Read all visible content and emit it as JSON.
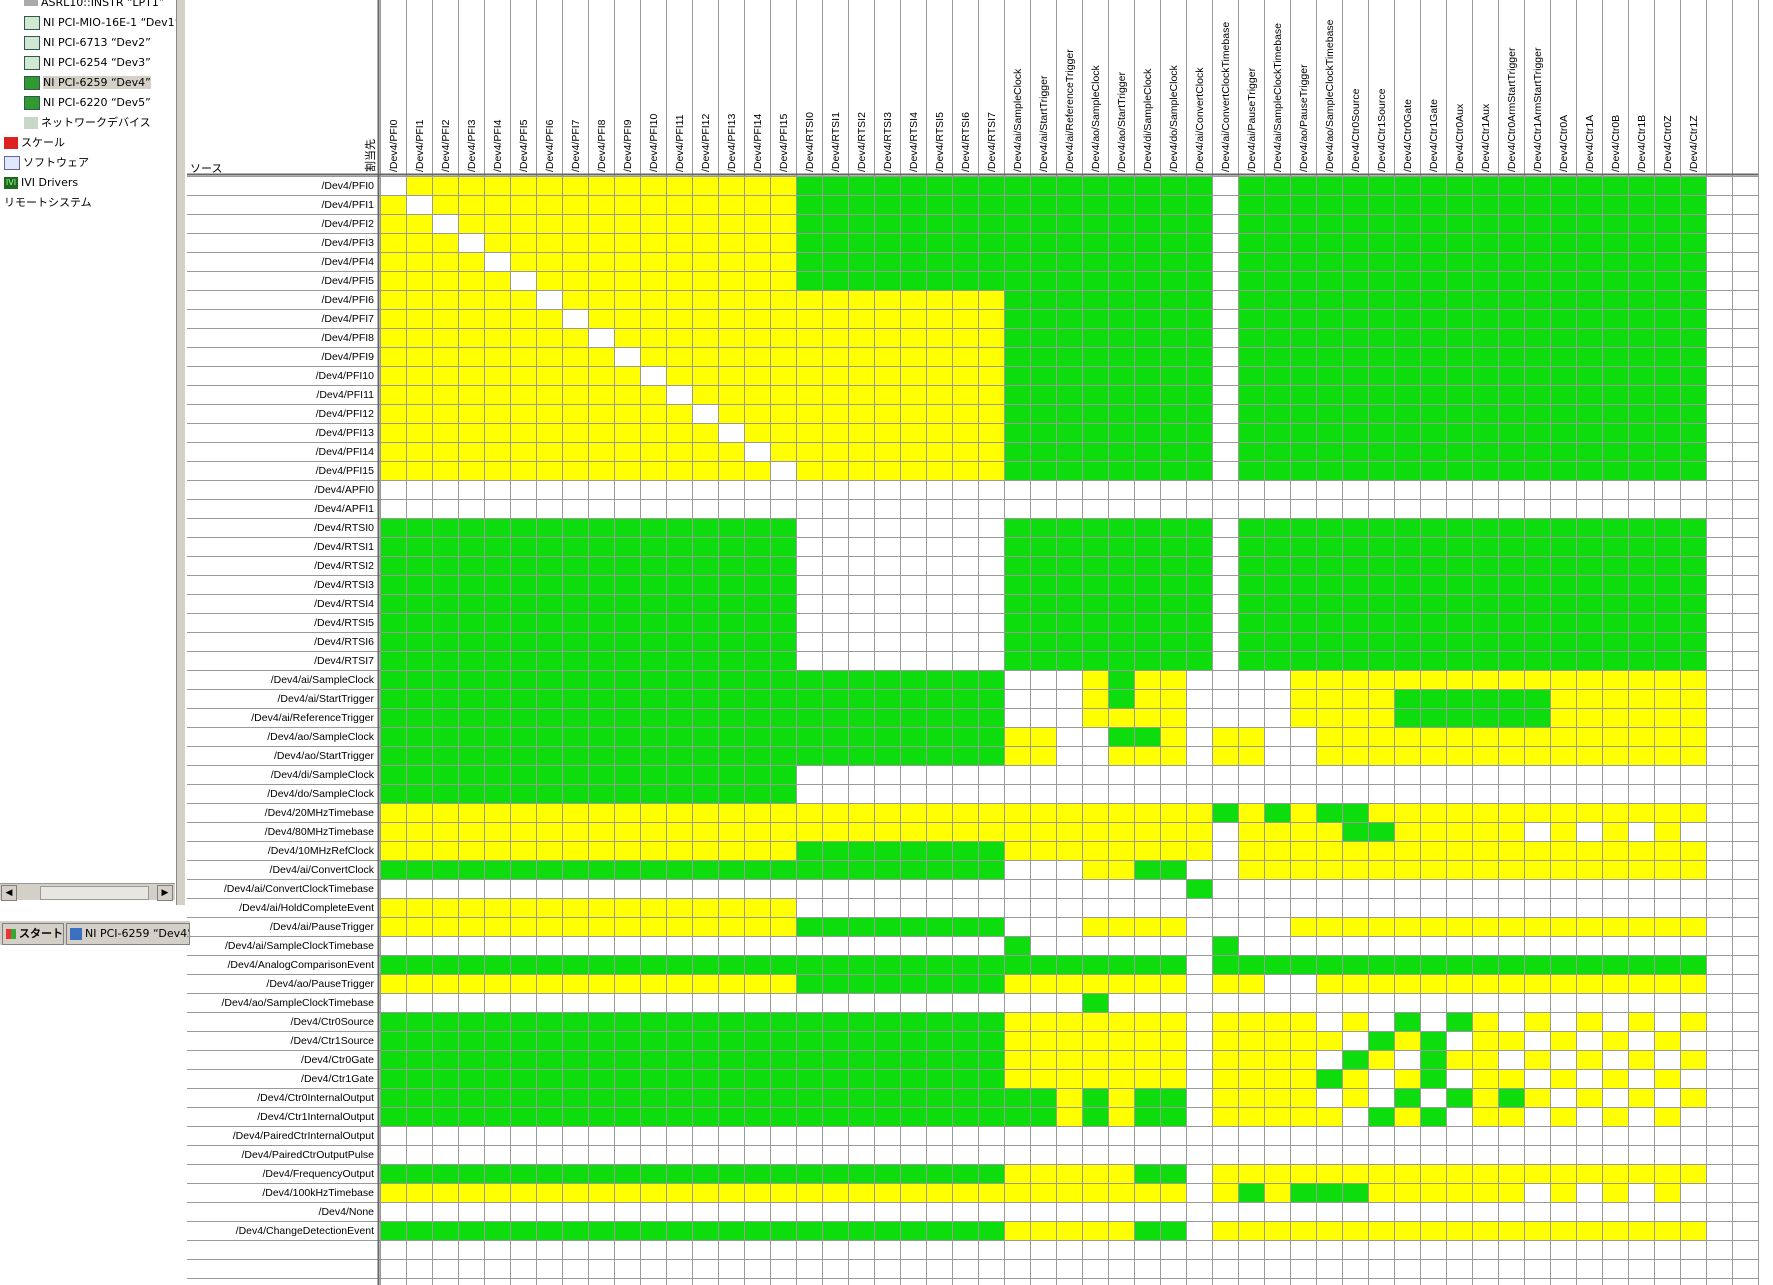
{
  "sidebar": {
    "items": [
      {
        "label": "ASRL10::INSTR “LPT1”",
        "icon": "serial-port-icon",
        "indent": 2
      },
      {
        "label": "NI PCI-MIO-16E-1 “Dev1”",
        "icon": "daq-device-error-icon",
        "indent": 2
      },
      {
        "label": "NI PCI-6713 “Dev2”",
        "icon": "daq-device-error-icon",
        "indent": 2
      },
      {
        "label": "NI PCI-6254 “Dev3”",
        "icon": "daq-device-error-icon",
        "indent": 2
      },
      {
        "label": "NI PCI-6259 “Dev4”",
        "icon": "daq-device-icon",
        "indent": 2,
        "selected": true
      },
      {
        "label": "NI PCI-6220 “Dev5”",
        "icon": "daq-device-icon",
        "indent": 2
      },
      {
        "label": "ネットワークデバイス",
        "icon": "network-devices-icon",
        "indent": 2
      },
      {
        "label": "スケール",
        "icon": "scale-icon",
        "indent": 0
      },
      {
        "label": "ソフトウェア",
        "icon": "software-icon",
        "indent": 0
      },
      {
        "label": "IVI Drivers",
        "icon": "ivi-drivers-icon",
        "indent": 0
      },
      {
        "label": "リモートシステム",
        "icon": "none",
        "indent": 0
      }
    ]
  },
  "taskbar": {
    "start_label": "スタート",
    "window_label": "NI PCI-6259 “Dev4”"
  },
  "matrix": {
    "corner_source_label": "ソース",
    "corner_dest_label": "割当先",
    "colors": {
      "green": "#0ddc0d",
      "yellow": "#ffff00",
      "white": "#ffffff",
      "grid": "#9a9a9a"
    },
    "columns": [
      "/Dev4/PFI0",
      "/Dev4/PFI1",
      "/Dev4/PFI2",
      "/Dev4/PFI3",
      "/Dev4/PFI4",
      "/Dev4/PFI5",
      "/Dev4/PFI6",
      "/Dev4/PFI7",
      "/Dev4/PFI8",
      "/Dev4/PFI9",
      "/Dev4/PFI10",
      "/Dev4/PFI11",
      "/Dev4/PFI12",
      "/Dev4/PFI13",
      "/Dev4/PFI14",
      "/Dev4/PFI15",
      "/Dev4/RTSI0",
      "/Dev4/RTSI1",
      "/Dev4/RTSI2",
      "/Dev4/RTSI3",
      "/Dev4/RTSI4",
      "/Dev4/RTSI5",
      "/Dev4/RTSI6",
      "/Dev4/RTSI7",
      "/Dev4/ai/SampleClock",
      "/Dev4/ai/StartTrigger",
      "/Dev4/ai/ReferenceTrigger",
      "/Dev4/ao/SampleClock",
      "/Dev4/ao/StartTrigger",
      "/Dev4/di/SampleClock",
      "/Dev4/do/SampleClock",
      "/Dev4/ai/ConvertClock",
      "/Dev4/ai/ConvertClockTimebase",
      "/Dev4/ai/PauseTrigger",
      "/Dev4/ai/SampleClockTimebase",
      "/Dev4/ao/PauseTrigger",
      "/Dev4/ao/SampleClockTimebase",
      "/Dev4/Ctr0Source",
      "/Dev4/Ctr1Source",
      "/Dev4/Ctr0Gate",
      "/Dev4/Ctr1Gate",
      "/Dev4/Ctr0Aux",
      "/Dev4/Ctr1Aux",
      "/Dev4/Ctr0ArmStartTrigger",
      "/Dev4/Ctr1ArmStartTrigger",
      "/Dev4/Ctr0A",
      "/Dev4/Ctr1A",
      "/Dev4/Ctr0B",
      "/Dev4/Ctr1B",
      "/Dev4/Ctr0Z",
      "/Dev4/Ctr1Z"
    ],
    "rows": [
      {
        "label": "/Dev4/PFI0",
        "cells": "WYYYYYYYYYYYYYYYGGGGGGGGGGGGGGGGWGGGGGGGGGGGGGGGGGG"
      },
      {
        "label": "/Dev4/PFI1",
        "cells": "YWYYYYYYYYYYYYYYGGGGGGGGGGGGGGGGWGGGGGGGGGGGGGGGGGG"
      },
      {
        "label": "/Dev4/PFI2",
        "cells": "YYWYYYYYYYYYYYYYGGGGGGGGGGGGGGGGWGGGGGGGGGGGGGGGGGG"
      },
      {
        "label": "/Dev4/PFI3",
        "cells": "YYYWYYYYYYYYYYYYGGGGGGGGGGGGGGGGWGGGGGGGGGGGGGGGGGG"
      },
      {
        "label": "/Dev4/PFI4",
        "cells": "YYYYWYYYYYYYYYYYGGGGGGGGGGGGGGGGWGGGGGGGGGGGGGGGGGG"
      },
      {
        "label": "/Dev4/PFI5",
        "cells": "YYYYYWYYYYYYYYYYGGGGGGGGGGGGGGGGWGGGGGGGGGGGGGGGGGG"
      },
      {
        "label": "/Dev4/PFI6",
        "cells": "YYYYYYWYYYYYYYYYYYYYYYYYGGGGGGGGWGGGGGGGGGGGGGGGGGG"
      },
      {
        "label": "/Dev4/PFI7",
        "cells": "YYYYYYYWYYYYYYYYYYYYYYYYGGGGGGGGWGGGGGGGGGGGGGGGGGG"
      },
      {
        "label": "/Dev4/PFI8",
        "cells": "YYYYYYYYWYYYYYYYYYYYYYYYGGGGGGGGWGGGGGGGGGGGGGGGGGG"
      },
      {
        "label": "/Dev4/PFI9",
        "cells": "YYYYYYYYYWYYYYYYYYYYYYYYGGGGGGGGWGGGGGGGGGGGGGGGGGG"
      },
      {
        "label": "/Dev4/PFI10",
        "cells": "YYYYYYYYYYWYYYYYYYYYYYYYGGGGGGGGWGGGGGGGGGGGGGGGGGG"
      },
      {
        "label": "/Dev4/PFI11",
        "cells": "YYYYYYYYYYYWYYYYYYYYYYYYGGGGGGGGWGGGGGGGGGGGGGGGGGG"
      },
      {
        "label": "/Dev4/PFI12",
        "cells": "YYYYYYYYYYYYWYYYYYYYYYYYGGGGGGGGWGGGGGGGGGGGGGGGGGG"
      },
      {
        "label": "/Dev4/PFI13",
        "cells": "YYYYYYYYYYYYYWYYYYYYYYYYGGGGGGGGWGGGGGGGGGGGGGGGGGG"
      },
      {
        "label": "/Dev4/PFI14",
        "cells": "YYYYYYYYYYYYYYWYYYYYYYYYGGGGGGGGWGGGGGGGGGGGGGGGGGG"
      },
      {
        "label": "/Dev4/PFI15",
        "cells": "YYYYYYYYYYYYYYYWYYYYYYYYGGGGGGGGWGGGGGGGGGGGGGGGGGG"
      },
      {
        "label": "/Dev4/APFI0",
        "cells": "WWWWWWWWWWWWWWWWWWWWWWWWWWWWWWWWWWWWWWWWWWWWWWWWWWW"
      },
      {
        "label": "/Dev4/APFI1",
        "cells": "WWWWWWWWWWWWWWWWWWWWWWWWWWWWWWWWWWWWWWWWWWWWWWWWWWW"
      },
      {
        "label": "/Dev4/RTSI0",
        "cells": "GGGGGGGGGGGGGGGGWWWWWWWWGGGGGGGGWGGGGGGGGGGGGGGGGGG"
      },
      {
        "label": "/Dev4/RTSI1",
        "cells": "GGGGGGGGGGGGGGGGWWWWWWWWGGGGGGGGWGGGGGGGGGGGGGGGGGG"
      },
      {
        "label": "/Dev4/RTSI2",
        "cells": "GGGGGGGGGGGGGGGGWWWWWWWWGGGGGGGGWGGGGGGGGGGGGGGGGGG"
      },
      {
        "label": "/Dev4/RTSI3",
        "cells": "GGGGGGGGGGGGGGGGWWWWWWWWGGGGGGGGWGGGGGGGGGGGGGGGGGG"
      },
      {
        "label": "/Dev4/RTSI4",
        "cells": "GGGGGGGGGGGGGGGGWWWWWWWWGGGGGGGGWGGGGGGGGGGGGGGGGGG"
      },
      {
        "label": "/Dev4/RTSI5",
        "cells": "GGGGGGGGGGGGGGGGWWWWWWWWGGGGGGGGWGGGGGGGGGGGGGGGGGG"
      },
      {
        "label": "/Dev4/RTSI6",
        "cells": "GGGGGGGGGGGGGGGGWWWWWWWWGGGGGGGGWGGGGGGGGGGGGGGGGGG"
      },
      {
        "label": "/Dev4/RTSI7",
        "cells": "GGGGGGGGGGGGGGGGWWWWWWWWGGGGGGGGWGGGGGGGGGGGGGGGGGG"
      },
      {
        "label": "/Dev4/ai/SampleClock",
        "cells": "GGGGGGGGGGGGGGGGGGGGGGGGWWWYGYYWWWWYYYYYYYYYYYYYYYY"
      },
      {
        "label": "/Dev4/ai/StartTrigger",
        "cells": "GGGGGGGGGGGGGGGGGGGGGGGGWWWYGYYWWWWYYYYGGGGGGYYYYYY"
      },
      {
        "label": "/Dev4/ai/ReferenceTrigger",
        "cells": "GGGGGGGGGGGGGGGGGGGGGGGGWWWYYYYWWWWYYYYGGGGGGYYYYYY"
      },
      {
        "label": "/Dev4/ao/SampleClock",
        "cells": "GGGGGGGGGGGGGGGGGGGGGGGGYYWWGGYWYYWWYYYYYYYYYYYYYYY"
      },
      {
        "label": "/Dev4/ao/StartTrigger",
        "cells": "GGGGGGGGGGGGGGGGGGGGGGGGYYWWYYYWYYWWYYYYYYYYYYYYYYY"
      },
      {
        "label": "/Dev4/di/SampleClock",
        "cells": "GGGGGGGGGGGGGGGGWWWWWWWWWWWWWWWWWWWWWWWWWWWWWWWWWWW"
      },
      {
        "label": "/Dev4/do/SampleClock",
        "cells": "GGGGGGGGGGGGGGGGWWWWWWWWWWWWWWWWWWWWWWWWWWWWWWWWWWW"
      },
      {
        "label": "/Dev4/20MHzTimebase",
        "cells": "YYYYYYYYYYYYYYYYYYYYYYYYYYYYYYYYGYGYGGYYYYYYYYYYYYY"
      },
      {
        "label": "/Dev4/80MHzTimebase",
        "cells": "YYYYYYYYYYYYYYYYYYYYYYYYYYYYYYYYWYYYYGGYYYYYWYWYWYW"
      },
      {
        "label": "/Dev4/10MHzRefClock",
        "cells": "YYYYYYYYYYYYYYYYGGGGGGGGYYYYYYYYWYYYYYYYYYYYYYYYYYY"
      },
      {
        "label": "/Dev4/ai/ConvertClock",
        "cells": "GGGGGGGGGGGGGGGGGGGGGGGGWWWYYGGWWYYYYYYYYYYYYYYYYYY"
      },
      {
        "label": "/Dev4/ai/ConvertClockTimebase",
        "cells": "WWWWWWWWWWWWWWWWWWWWWWWWWWWWWWWGWWWWWWWWWWWWWWWWWWW"
      },
      {
        "label": "/Dev4/ai/HoldCompleteEvent",
        "cells": "YYYYYYYYYYYYYYYYWWWWWWWWWWWWWWWWWWWWWWWWWWWWWWWWWWW"
      },
      {
        "label": "/Dev4/ai/PauseTrigger",
        "cells": "YYYYYYYYYYYYYYYYGGGGGGGGWWWYYYYWWWWYYYYYYYYYYYYYYYY"
      },
      {
        "label": "/Dev4/ai/SampleClockTimebase",
        "cells": "WWWWWWWWWWWWWWWWWWWWWWWWGWWWWWWWGWWWWWWWWWWWWWWWWWW"
      },
      {
        "label": "/Dev4/AnalogComparisonEvent",
        "cells": "GGGGGGGGGGGGGGGGGGGGGGGGGGGGGGGWGGGGGGGGGGGGGGGGGGG"
      },
      {
        "label": "/Dev4/ao/PauseTrigger",
        "cells": "YYYYYYYYYYYYYYYYGGGGGGGGYYYYYYYWYYWWYYYYYYYYYYYYYYY"
      },
      {
        "label": "/Dev4/ao/SampleClockTimebase",
        "cells": "WWWWWWWWWWWWWWWWWWWWWWWWWWWGWWWWWWWWWWWWWWWWWWWWWWW"
      },
      {
        "label": "/Dev4/Ctr0Source",
        "cells": "GGGGGGGGGGGGGGGGGGGGGGGGYYYYYYYWYYYYWYWGWGYWYWYWYWY"
      },
      {
        "label": "/Dev4/Ctr1Source",
        "cells": "GGGGGGGGGGGGGGGGGGGGGGGGYYYYYYYWYYYYYWGYGWYYWYWYWYW"
      },
      {
        "label": "/Dev4/Ctr0Gate",
        "cells": "GGGGGGGGGGGGGGGGGGGGGGGGYYYYYYYWYYYYWGYWGYYWYWYWYWY"
      },
      {
        "label": "/Dev4/Ctr1Gate",
        "cells": "GGGGGGGGGGGGGGGGGGGGGGGGYYYYYYYWYYYYGYWYGWYYWYWYWYW"
      },
      {
        "label": "/Dev4/Ctr0InternalOutput",
        "cells": "GGGGGGGGGGGGGGGGGGGGGGGGGGYGYGGWYYYYWYWGWGYGYWYWYWY"
      },
      {
        "label": "/Dev4/Ctr1InternalOutput",
        "cells": "GGGGGGGGGGGGGGGGGGGGGGGGGGYGYGGWYYYYYWGYGWYYWYWYWYW"
      },
      {
        "label": "/Dev4/PairedCtrInternalOutput",
        "cells": "WWWWWWWWWWWWWWWWWWWWWWWWWWWWWWWWWWWWWWWWWWWWWWWWWWW"
      },
      {
        "label": "/Dev4/PairedCtrOutputPulse",
        "cells": "WWWWWWWWWWWWWWWWWWWWWWWWWWWWWWWWWWWWWWWWWWWWWWWWWWW"
      },
      {
        "label": "/Dev4/FrequencyOutput",
        "cells": "GGGGGGGGGGGGGGGGGGGGGGGGYYYYYGGWYYYYYYYYYYYYYYYYYYY"
      },
      {
        "label": "/Dev4/100kHzTimebase",
        "cells": "YYYYYYYYYYYYYYYYYYYYYYYYYYYYYYYWYGYGGGYYYYYYWYWYWYW"
      },
      {
        "label": "/Dev4/None",
        "cells": "WWWWWWWWWWWWWWWWWWWWWWWWWWWWWWWWWWWWWWWWWWWWWWWWWWW"
      },
      {
        "label": "/Dev4/ChangeDetectionEvent",
        "cells": "GGGGGGGGGGGGGGGGGGGGGGGGYYYYYGGWYYYYYYYYYYYYYYYYYYY"
      }
    ]
  }
}
